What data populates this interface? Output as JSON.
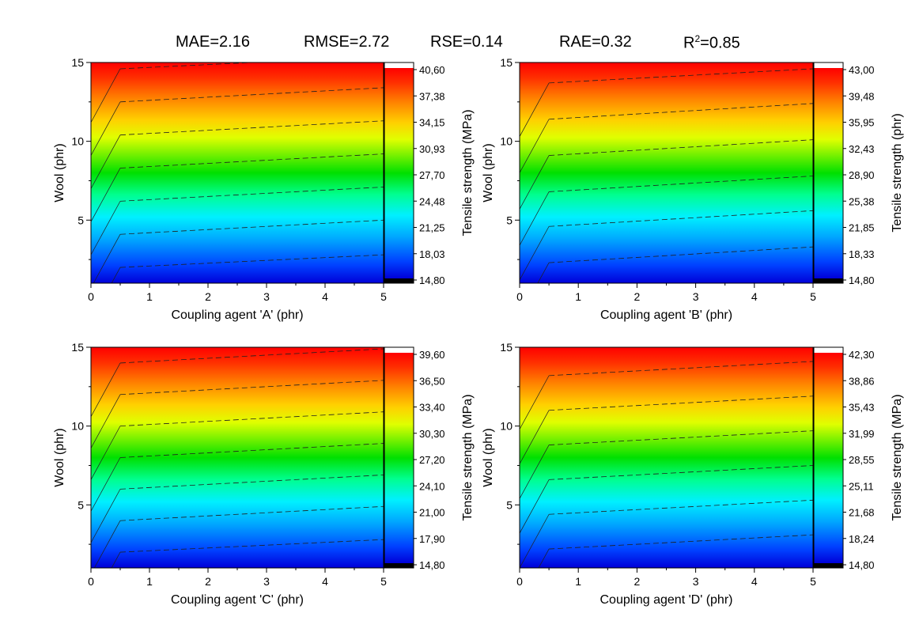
{
  "metrics": {
    "mae": "MAE=2.16",
    "rmse": "RMSE=2.72",
    "rse": "RSE=0.14",
    "rae": "RAE=0.32",
    "r2_prefix": "R",
    "r2_sup": "2",
    "r2_value": "=0.85"
  },
  "chart_data": [
    {
      "type": "heatmap",
      "xlabel": "Coupling agent 'A' (phr)",
      "ylabel": "Wool (phr)",
      "colorbar_label": "Tensile strength (MPa)",
      "xlim": [
        0,
        5
      ],
      "ylim": [
        1,
        15
      ],
      "x_ticks": [
        "0",
        "1",
        "2",
        "3",
        "4",
        "5"
      ],
      "y_ticks": [
        "5",
        "10",
        "15"
      ],
      "z_range": [
        14.8,
        40.6
      ],
      "colorbar_ticks": [
        "40,60",
        "37,38",
        "34,15",
        "30,93",
        "27,70",
        "24,48",
        "21,25",
        "18,03",
        "14,80"
      ],
      "x_break": 0.5,
      "contour_levels_at_x0_5": [
        2,
        4.1,
        6.2,
        8.3,
        10.4,
        12.5,
        14.6
      ],
      "contour_levels_at_x5": [
        2.8,
        5.0,
        7.1,
        9.2,
        11.3,
        13.4
      ],
      "low_corner": "top-left"
    },
    {
      "type": "heatmap",
      "xlabel": "Coupling agent 'B' (phr)",
      "ylabel": "Wool (phr)",
      "colorbar_label": "Tensile strength (phr)",
      "xlim": [
        0,
        5
      ],
      "ylim": [
        1,
        15
      ],
      "x_ticks": [
        "0",
        "1",
        "2",
        "3",
        "4",
        "5"
      ],
      "y_ticks": [
        "5",
        "10",
        "15"
      ],
      "z_range": [
        14.8,
        43.0
      ],
      "colorbar_ticks": [
        "43,00",
        "39,48",
        "35,95",
        "32,43",
        "28,90",
        "25,38",
        "21,85",
        "18,33",
        "14,80"
      ],
      "x_break": 0.5,
      "contour_levels_at_x0_5": [
        2.3,
        4.6,
        6.8,
        9.1,
        11.4,
        13.7
      ],
      "contour_levels_at_x5": [
        3.3,
        5.6,
        7.8,
        10.1,
        12.4,
        14.6
      ],
      "low_corner": "top-left"
    },
    {
      "type": "heatmap",
      "xlabel": "Coupling agent 'C' (phr)",
      "ylabel": "Wool (phr)",
      "colorbar_label": "Tensile strength (MPa)",
      "xlim": [
        0,
        5
      ],
      "ylim": [
        1,
        15
      ],
      "x_ticks": [
        "0",
        "1",
        "2",
        "3",
        "4",
        "5"
      ],
      "y_ticks": [
        "5",
        "10",
        "15"
      ],
      "z_range": [
        14.8,
        39.6
      ],
      "colorbar_ticks": [
        "39,60",
        "36,50",
        "33,40",
        "30,30",
        "27,20",
        "24,10",
        "21,00",
        "17,90",
        "14,80"
      ],
      "x_break": 0.5,
      "contour_levels_at_x0_5": [
        2,
        4,
        6,
        8,
        10,
        12,
        14
      ],
      "contour_levels_at_x5": [
        2.8,
        4.9,
        6.9,
        8.9,
        10.9,
        12.9,
        14.9
      ],
      "low_corner": "top-left"
    },
    {
      "type": "heatmap",
      "xlabel": "Coupling agent 'D' (phr)",
      "ylabel": "Wool (phr)",
      "colorbar_label": "Tensile strength (MPa)",
      "xlim": [
        0,
        5
      ],
      "ylim": [
        1,
        15
      ],
      "x_ticks": [
        "0",
        "1",
        "2",
        "3",
        "4",
        "5"
      ],
      "y_ticks": [
        "5",
        "10",
        "15"
      ],
      "z_range": [
        14.8,
        42.3
      ],
      "colorbar_ticks": [
        "42,30",
        "38,86",
        "35,43",
        "31,99",
        "28,55",
        "25,11",
        "21,68",
        "18,24",
        "14,80"
      ],
      "x_break": 0.5,
      "contour_levels_at_x0_5": [
        2.2,
        4.4,
        6.6,
        8.8,
        11.0,
        13.2
      ],
      "contour_levels_at_x5": [
        3.1,
        5.3,
        7.5,
        9.7,
        11.9,
        14.1
      ],
      "low_corner": "top-left"
    }
  ]
}
